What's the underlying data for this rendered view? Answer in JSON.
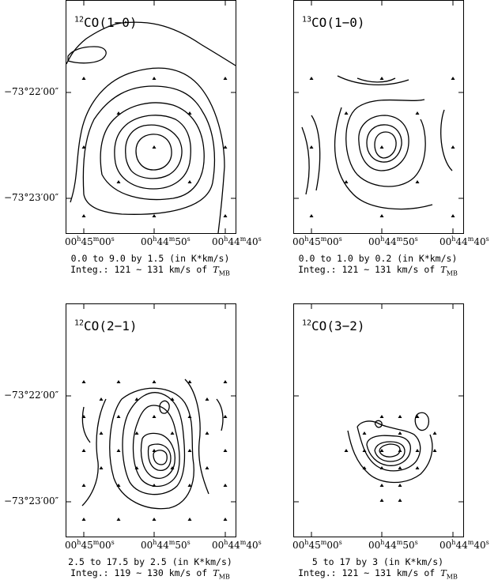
{
  "y_axis": {
    "ticks": [
      "−73°22′00″",
      "−73°23′00″"
    ]
  },
  "x_axis": {
    "ticks": [
      {
        "h": "00",
        "hu": "h",
        "m": "45",
        "mu": "m",
        "s": "00",
        "su": "s"
      },
      {
        "h": "00",
        "hu": "h",
        "m": "44",
        "mu": "m",
        "s": "50",
        "su": "s"
      },
      {
        "h": "00",
        "hu": "h",
        "m": "44",
        "mu": "m",
        "s": "40",
        "su": "s"
      }
    ]
  },
  "panels": [
    {
      "id": "12co10",
      "iso": "12",
      "line": "CO(1−0)",
      "levels": "0.0 to 9.0 by 1.5 (in K*km/s)",
      "integ_prefix": "Integ.: 121 ~ 131 km/s of ",
      "tm": "T",
      "tm_sub": "MB"
    },
    {
      "id": "13co10",
      "iso": "13",
      "line": "CO(1−0)",
      "levels": "0.0 to 1.0 by 0.2 (in K*km/s)",
      "integ_prefix": "Integ.: 121 ~ 131 km/s of ",
      "tm": "T",
      "tm_sub": "MB"
    },
    {
      "id": "12co21",
      "iso": "12",
      "line": "CO(2−1)",
      "levels": "2.5 to 17.5 by 2.5 (in K*km/s)",
      "integ_prefix": "Integ.: 119 ~ 130 km/s of ",
      "tm": "T",
      "tm_sub": "MB"
    },
    {
      "id": "12co32",
      "iso": "12",
      "line": "CO(3−2)",
      "levels": "5 to 17 by 3 (in K*km/s)",
      "integ_prefix": "Integ.: 121 ~ 131 km/s of ",
      "tm": "T",
      "tm_sub": "MB"
    }
  ]
}
